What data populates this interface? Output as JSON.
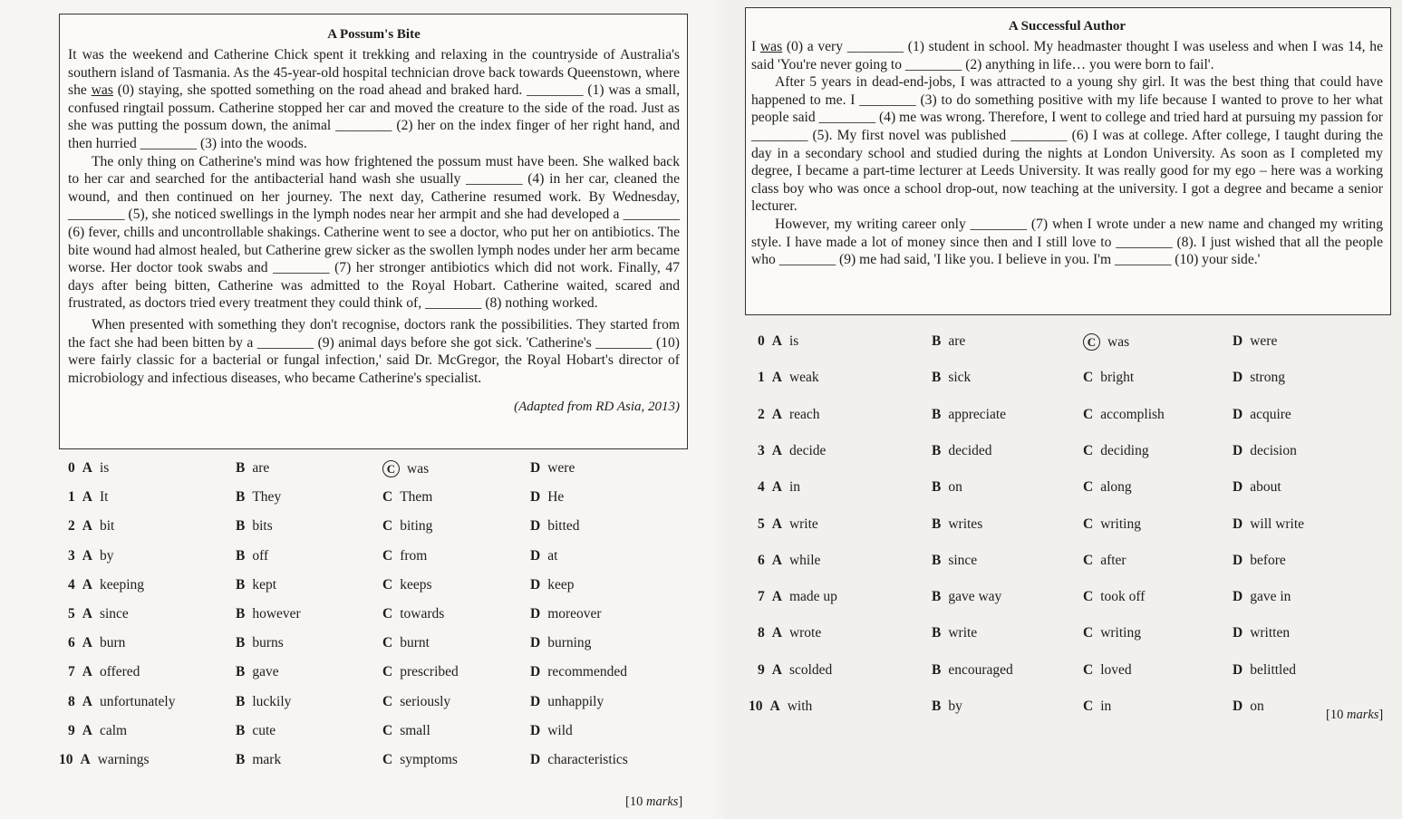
{
  "left": {
    "title": "A Possum's Bite",
    "p1_pre": "It was the weekend and Catherine Chick spent it trekking and relaxing in the countryside of Australia's southern island of Tasmania. As the 45-year-old hospital technician drove back towards Queenstown, where she ",
    "p1_underlined": "was",
    "p1_post": " (0) staying, she spotted something on the road ahead and braked hard. ________ (1) was a small, confused ringtail possum. Catherine stopped her car and moved the creature to the side of the road. Just as she was putting the possum down, the animal ________ (2) her on the index finger of her right hand, and then hurried ________ (3) into the woods.",
    "p2": "The only thing on Catherine's mind was how frightened the possum must have been. She walked back to her car and searched for the antibacterial hand wash she usually ________ (4) in her car, cleaned the wound, and then continued on her journey. The next day, Catherine resumed work. By Wednesday, ________ (5), she noticed swellings in the lymph nodes near her armpit and she had developed a ________ (6) fever, chills and uncontrollable shakings. Catherine went to see a doctor, who put her on antibiotics. The bite wound had almost healed, but Catherine grew sicker as the swollen lymph nodes under her arm became worse. Her doctor took swabs and ________ (7) her stronger antibiotics which did not work. Finally, 47 days after being bitten, Catherine was admitted to the Royal Hobart. Catherine waited, scared and frustrated, as doctors tried every treatment they could think of, ________ (8) nothing worked.",
    "p3": "When presented with something they don't recognise, doctors rank the possibilities. They started from the fact she had been bitten by a ________ (9) animal days before she got sick. 'Catherine's ________ (10) were fairly classic for a bacterial or fungal infection,' said Dr. McGregor, the Royal Hobart's director of microbiology and infectious diseases, who became Catherine's specialist.",
    "source": "(Adapted from RD Asia, 2013)",
    "options": [
      {
        "n": "0",
        "a": "is",
        "b": "are",
        "c": "was",
        "d": "were",
        "circled": "C"
      },
      {
        "n": "1",
        "a": "It",
        "b": "They",
        "c": "Them",
        "d": "He"
      },
      {
        "n": "2",
        "a": "bit",
        "b": "bits",
        "c": "biting",
        "d": "bitted"
      },
      {
        "n": "3",
        "a": "by",
        "b": "off",
        "c": "from",
        "d": "at"
      },
      {
        "n": "4",
        "a": "keeping",
        "b": "kept",
        "c": "keeps",
        "d": "keep"
      },
      {
        "n": "5",
        "a": "since",
        "b": "however",
        "c": "towards",
        "d": "moreover"
      },
      {
        "n": "6",
        "a": "burn",
        "b": "burns",
        "c": "burnt",
        "d": "burning"
      },
      {
        "n": "7",
        "a": "offered",
        "b": "gave",
        "c": "prescribed",
        "d": "recommended"
      },
      {
        "n": "8",
        "a": "unfortunately",
        "b": "luckily",
        "c": "seriously",
        "d": "unhappily"
      },
      {
        "n": "9",
        "a": "calm",
        "b": "cute",
        "c": "small",
        "d": "wild"
      },
      {
        "n": "10",
        "a": "warnings",
        "b": "mark",
        "c": "symptoms",
        "d": "characteristics"
      }
    ],
    "marks_num": "[10 ",
    "marks_word": "marks",
    "marks_end": "]"
  },
  "right": {
    "title": "A Successful Author",
    "p1_pre": "I ",
    "p1_underlined": "was",
    "p1_post": " (0) a very ________ (1) student in school. My headmaster thought I was useless and when I was 14, he said 'You're never going to ________ (2) anything in life… you were born to fail'.",
    "p2": "After 5 years in dead-end-jobs, I was attracted to a young shy girl. It was the best thing that could have happened to me. I ________ (3) to do something positive with my life because I wanted to prove to her what people said ________ (4) me was wrong. Therefore, I went to college and tried hard at pursuing my passion for ________ (5). My first novel was published ________ (6) I was at college. After college, I taught during the day in a secondary school and studied during the nights at London University. As soon as I completed my degree, I became a part-time lecturer at Leeds University. It was really good for my ego – here was a working class boy who was once a school drop-out, now teaching at the university. I got a degree and became a senior lecturer.",
    "p3": "However, my writing career only ________ (7) when I wrote under a new name and changed my writing style. I have made a lot of money since then and I still love to ________ (8). I just wished that all the people who ________ (9) me had said, 'I like you. I believe in you. I'm ________ (10) your side.'",
    "options": [
      {
        "n": "0",
        "a": "is",
        "b": "are",
        "c": "was",
        "d": "were",
        "circled": "C"
      },
      {
        "n": "1",
        "a": "weak",
        "b": "sick",
        "c": "bright",
        "d": "strong"
      },
      {
        "n": "2",
        "a": "reach",
        "b": "appreciate",
        "c": "accomplish",
        "d": "acquire"
      },
      {
        "n": "3",
        "a": "decide",
        "b": "decided",
        "c": "deciding",
        "d": "decision"
      },
      {
        "n": "4",
        "a": "in",
        "b": "on",
        "c": "along",
        "d": "about"
      },
      {
        "n": "5",
        "a": "write",
        "b": "writes",
        "c": "writing",
        "d": "will write"
      },
      {
        "n": "6",
        "a": "while",
        "b": "since",
        "c": "after",
        "d": "before"
      },
      {
        "n": "7",
        "a": "made up",
        "b": "gave way",
        "c": "took off",
        "d": "gave in"
      },
      {
        "n": "8",
        "a": "wrote",
        "b": "write",
        "c": "writing",
        "d": "written"
      },
      {
        "n": "9",
        "a": "scolded",
        "b": "encouraged",
        "c": "loved",
        "d": "belittled"
      },
      {
        "n": "10",
        "a": "with",
        "b": "by",
        "c": "in",
        "d": "on"
      }
    ],
    "marks_num": "[10 ",
    "marks_word": "marks",
    "marks_end": "]"
  },
  "letters": [
    "A",
    "B",
    "C",
    "D"
  ]
}
